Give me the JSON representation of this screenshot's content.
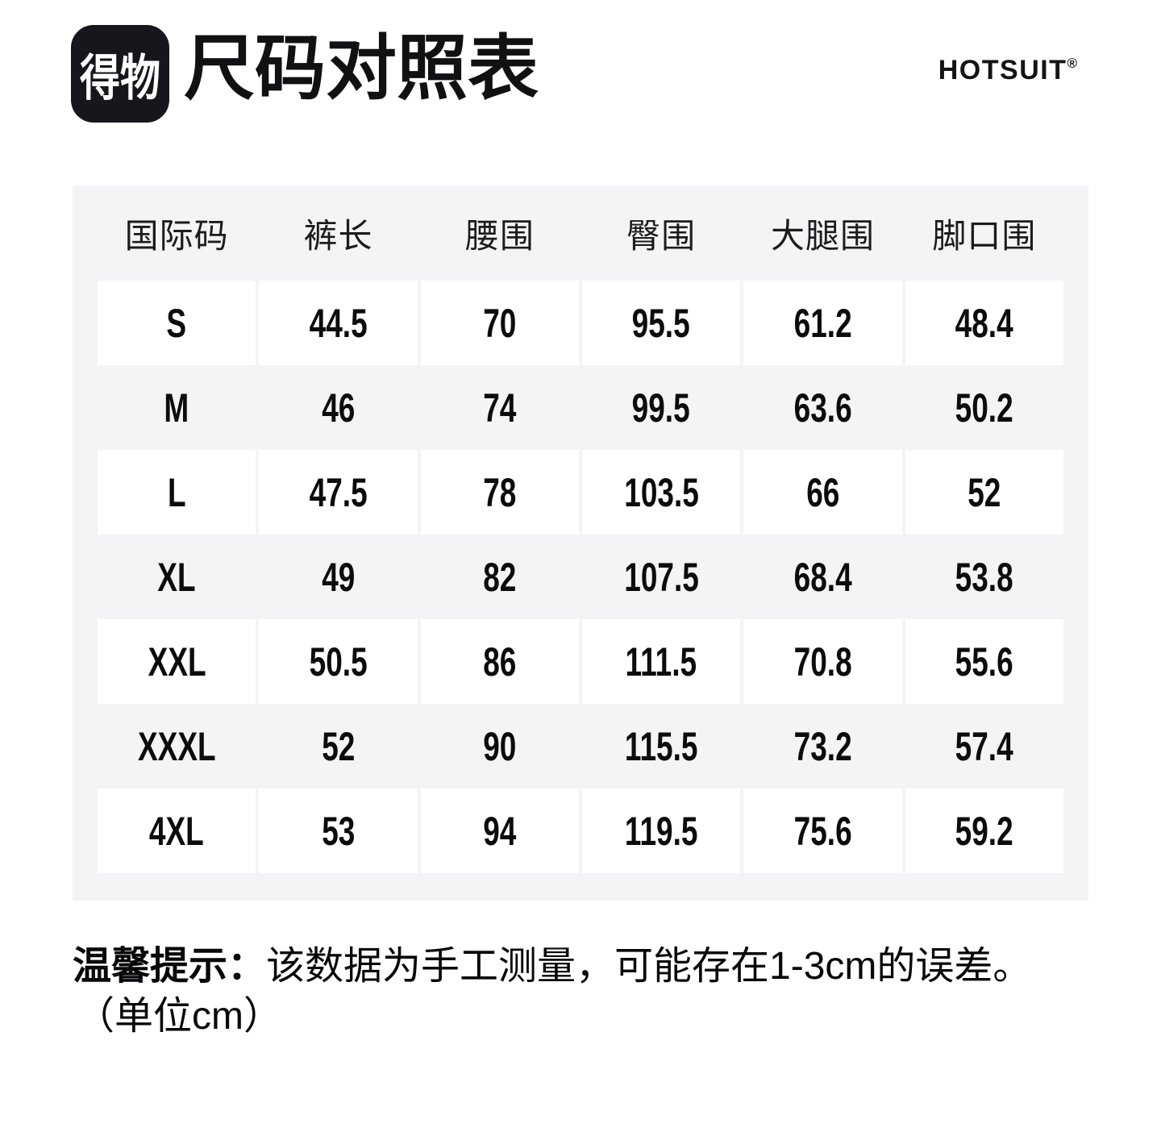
{
  "colors": {
    "page_bg": "#ffffff",
    "panel_bg": "#f4f4f6",
    "cell_bg": "#ffffff",
    "logo_bg": "#16161c",
    "text": "#101014"
  },
  "header": {
    "app_badge": "得物",
    "title": "尺码对照表",
    "brand": "HOTSUIT",
    "brand_reg": "®"
  },
  "table": {
    "columns": [
      "国际码",
      "裤长",
      "腰围",
      "臀围",
      "大腿围",
      "脚口围"
    ],
    "rows": [
      {
        "size": "S",
        "values": [
          "44.5",
          "70",
          "95.5",
          "61.2",
          "48.4"
        ]
      },
      {
        "size": "M",
        "values": [
          "46",
          "74",
          "99.5",
          "63.6",
          "50.2"
        ]
      },
      {
        "size": "L",
        "values": [
          "47.5",
          "78",
          "103.5",
          "66",
          "52"
        ]
      },
      {
        "size": "XL",
        "values": [
          "49",
          "82",
          "107.5",
          "68.4",
          "53.8"
        ]
      },
      {
        "size": "XXL",
        "values": [
          "50.5",
          "86",
          "111.5",
          "70.8",
          "55.6"
        ]
      },
      {
        "size": "XXXL",
        "values": [
          "52",
          "90",
          "115.5",
          "73.2",
          "57.4"
        ]
      },
      {
        "size": "4XL",
        "values": [
          "53",
          "94",
          "119.5",
          "75.6",
          "59.2"
        ]
      }
    ]
  },
  "footnote": {
    "label": "温馨提示：",
    "text": "该数据为手工测量，可能存在1-3cm的误差。",
    "line2": "（单位cm）"
  }
}
